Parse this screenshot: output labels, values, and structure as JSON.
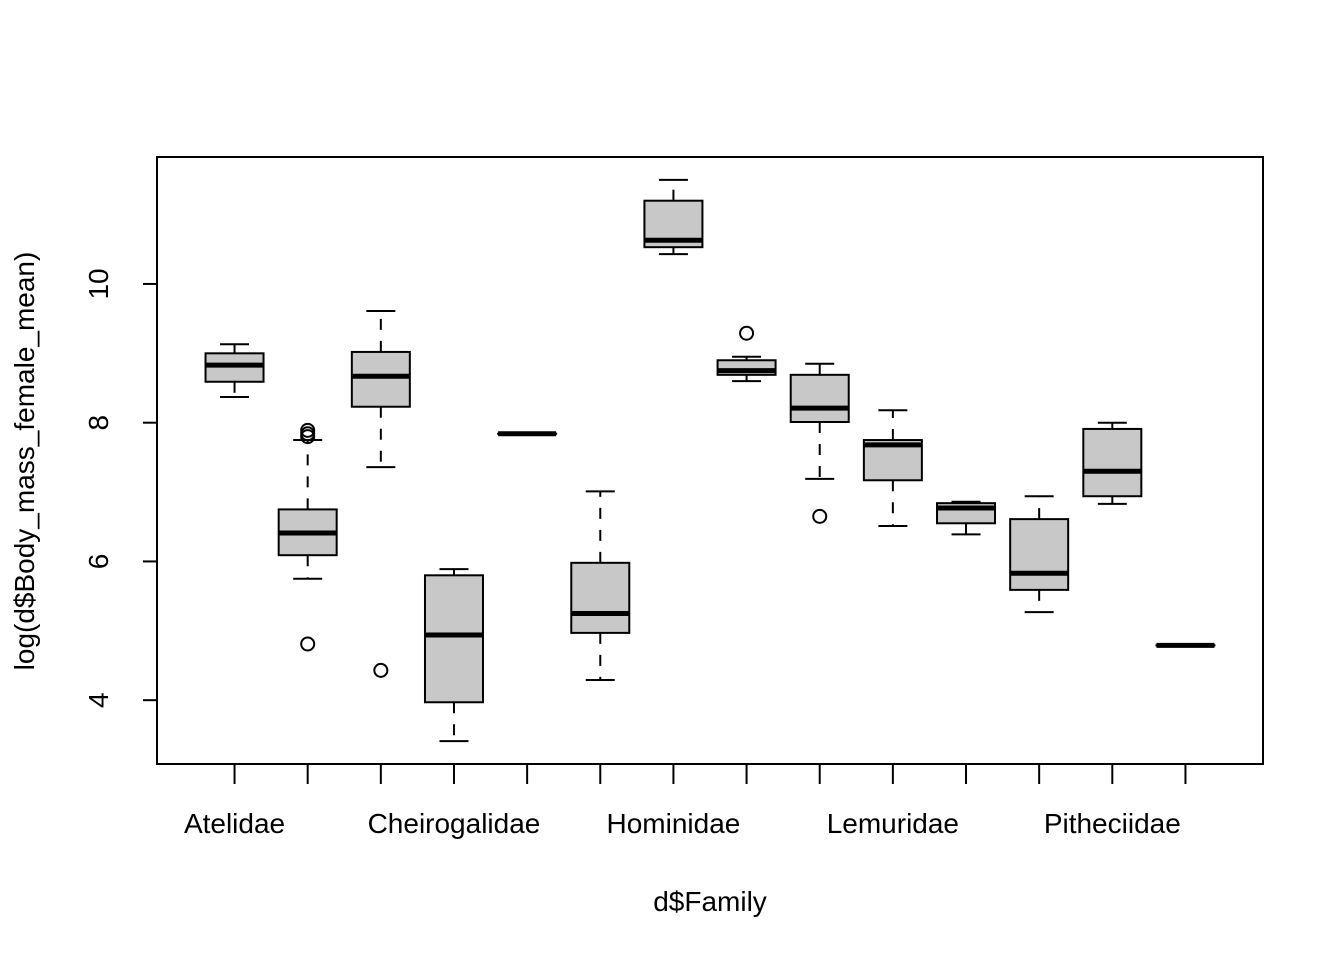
{
  "chart_data": {
    "type": "boxplot",
    "title": "",
    "xlabel": "d$Family",
    "ylabel": "log(d$Body_mass_female_mean)",
    "ylim": [
      3.08,
      11.83
    ],
    "xlim": [
      -0.06,
      15.06
    ],
    "grid": false,
    "legend": "none",
    "box_fill": "#c8c8c8",
    "line_color": "#000000",
    "y_ticks": [
      4,
      6,
      8,
      10
    ],
    "y_tick_labels": [
      "4",
      "6",
      "8",
      "10"
    ],
    "categories": [
      "Atelidae",
      "",
      "",
      "Cheirogalidae",
      "",
      "",
      "Hominidae",
      "",
      "",
      "Lemuridae",
      "",
      "",
      "Pitheciidae",
      ""
    ],
    "boxes": [
      {
        "whisker_low": 8.37,
        "q1": 8.59,
        "median": 8.83,
        "q3": 9.0,
        "whisker_high": 9.13,
        "outliers": []
      },
      {
        "whisker_low": 5.75,
        "q1": 6.09,
        "median": 6.41,
        "q3": 6.75,
        "whisker_high": 7.75,
        "outliers": [
          7.89,
          7.84,
          7.8,
          4.81
        ]
      },
      {
        "whisker_low": 7.36,
        "q1": 8.23,
        "median": 8.67,
        "q3": 9.02,
        "whisker_high": 9.61,
        "outliers": [
          4.43
        ]
      },
      {
        "whisker_low": 3.41,
        "q1": 3.97,
        "median": 4.94,
        "q3": 5.8,
        "whisker_high": 5.89,
        "outliers": []
      },
      {
        "whisker_low": 7.84,
        "q1": 7.84,
        "median": 7.84,
        "q3": 7.84,
        "whisker_high": 7.84,
        "outliers": []
      },
      {
        "whisker_low": 4.29,
        "q1": 4.97,
        "median": 5.25,
        "q3": 5.98,
        "whisker_high": 7.01,
        "outliers": []
      },
      {
        "whisker_low": 10.43,
        "q1": 10.53,
        "median": 10.63,
        "q3": 11.2,
        "whisker_high": 11.5,
        "outliers": []
      },
      {
        "whisker_low": 8.6,
        "q1": 8.69,
        "median": 8.75,
        "q3": 8.9,
        "whisker_high": 8.95,
        "outliers": [
          9.29
        ]
      },
      {
        "whisker_low": 7.19,
        "q1": 8.01,
        "median": 8.21,
        "q3": 8.69,
        "whisker_high": 8.85,
        "outliers": [
          6.65
        ]
      },
      {
        "whisker_low": 6.51,
        "q1": 7.17,
        "median": 7.68,
        "q3": 7.75,
        "whisker_high": 8.18,
        "outliers": []
      },
      {
        "whisker_low": 6.39,
        "q1": 6.55,
        "median": 6.77,
        "q3": 6.84,
        "whisker_high": 6.86,
        "outliers": []
      },
      {
        "whisker_low": 5.27,
        "q1": 5.59,
        "median": 5.83,
        "q3": 6.61,
        "whisker_high": 6.94,
        "outliers": []
      },
      {
        "whisker_low": 6.83,
        "q1": 6.94,
        "median": 7.3,
        "q3": 7.91,
        "whisker_high": 8.0,
        "outliers": []
      },
      {
        "whisker_low": 4.79,
        "q1": 4.79,
        "median": 4.79,
        "q3": 4.79,
        "whisker_high": 4.79,
        "outliers": []
      }
    ]
  }
}
